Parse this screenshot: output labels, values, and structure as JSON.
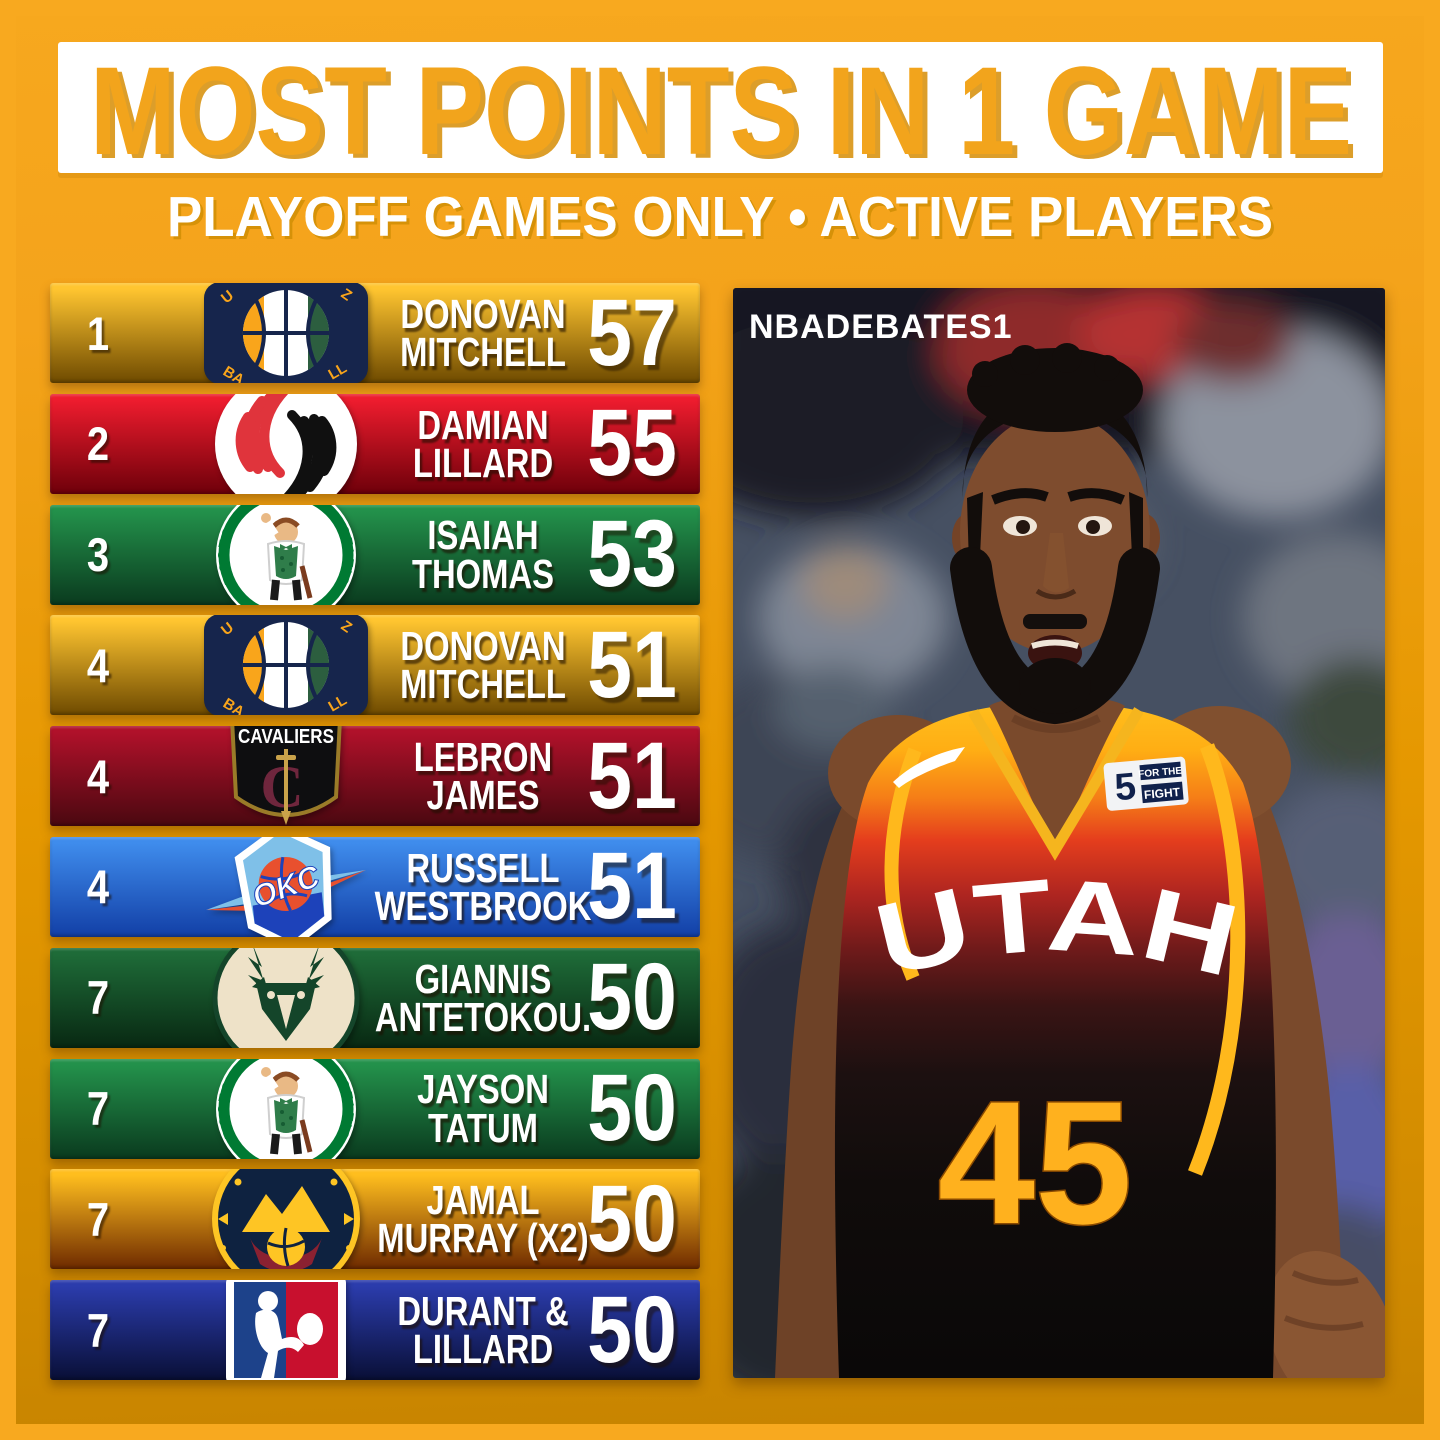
{
  "header": {
    "title": "MOST POINTS IN 1 GAME",
    "subtitle": "PLAYOFF GAMES ONLY • ACTIVE PLAYERS"
  },
  "watermark": "NBADEBATES1",
  "colors": {
    "background_top": "#F7A81E",
    "background_bottom": "#C68300",
    "title_text": "#F2A41C",
    "title_box": "#FFFFFF",
    "row_text": "#FFFFFF"
  },
  "list": {
    "rows": [
      {
        "rank": "1",
        "team": "jazz",
        "team_name": "Utah Jazz",
        "player_lines": [
          "DONOVAN",
          "MITCHELL"
        ],
        "points": "57",
        "c1": "#FFC530",
        "c2": "#6E4A00"
      },
      {
        "rank": "2",
        "team": "blazers",
        "team_name": "Portland Trail Blazers",
        "player_lines": [
          "DAMIAN",
          "LILLARD"
        ],
        "points": "55",
        "c1": "#EE1C2E",
        "c2": "#6E000A"
      },
      {
        "rank": "3",
        "team": "celtics",
        "team_name": "Boston Celtics",
        "player_lines": [
          "ISAIAH",
          "THOMAS"
        ],
        "points": "53",
        "c1": "#23914B",
        "c2": "#0A3A1E"
      },
      {
        "rank": "4",
        "team": "jazz",
        "team_name": "Utah Jazz",
        "player_lines": [
          "DONOVAN",
          "MITCHELL"
        ],
        "points": "51",
        "c1": "#FFC530",
        "c2": "#6E4A00"
      },
      {
        "rank": "4",
        "team": "cavaliers",
        "team_name": "Cleveland Cavaliers",
        "player_lines": [
          "LEBRON",
          "JAMES"
        ],
        "points": "51",
        "c1": "#B0112A",
        "c2": "#4A0810"
      },
      {
        "rank": "4",
        "team": "thunder",
        "team_name": "Oklahoma City Thunder",
        "player_lines": [
          "RUSSELL",
          "WESTBROOK"
        ],
        "points": "51",
        "c1": "#3F8CEC",
        "c2": "#123FA6"
      },
      {
        "rank": "7",
        "team": "bucks",
        "team_name": "Milwaukee Bucks",
        "player_lines": [
          "GIANNIS",
          "ANTETOKOU."
        ],
        "points": "50",
        "c1": "#1E6B38",
        "c2": "#082812"
      },
      {
        "rank": "7",
        "team": "celtics",
        "team_name": "Boston Celtics",
        "player_lines": [
          "JAYSON",
          "TATUM"
        ],
        "points": "50",
        "c1": "#23914B",
        "c2": "#0A3A1E"
      },
      {
        "rank": "7",
        "team": "nuggets",
        "team_name": "Denver Nuggets",
        "player_lines": [
          "JAMAL",
          "MURRAY (X2)"
        ],
        "points": "50",
        "c1": "#FFBE1E",
        "c2": "#6E2A00"
      },
      {
        "rank": "7",
        "team": "nba",
        "team_name": "NBA",
        "player_lines": [
          "DURANT &",
          "LILLARD"
        ],
        "points": "50",
        "c1": "#2B3CAC",
        "c2": "#090F36"
      }
    ]
  },
  "photo": {
    "watermark": "NBADEBATES1",
    "jersey_team_text": "UTAH",
    "jersey_number": "45",
    "patch_five": "5",
    "patch_line1": "FOR THE",
    "patch_line2": "FIGHT"
  }
}
